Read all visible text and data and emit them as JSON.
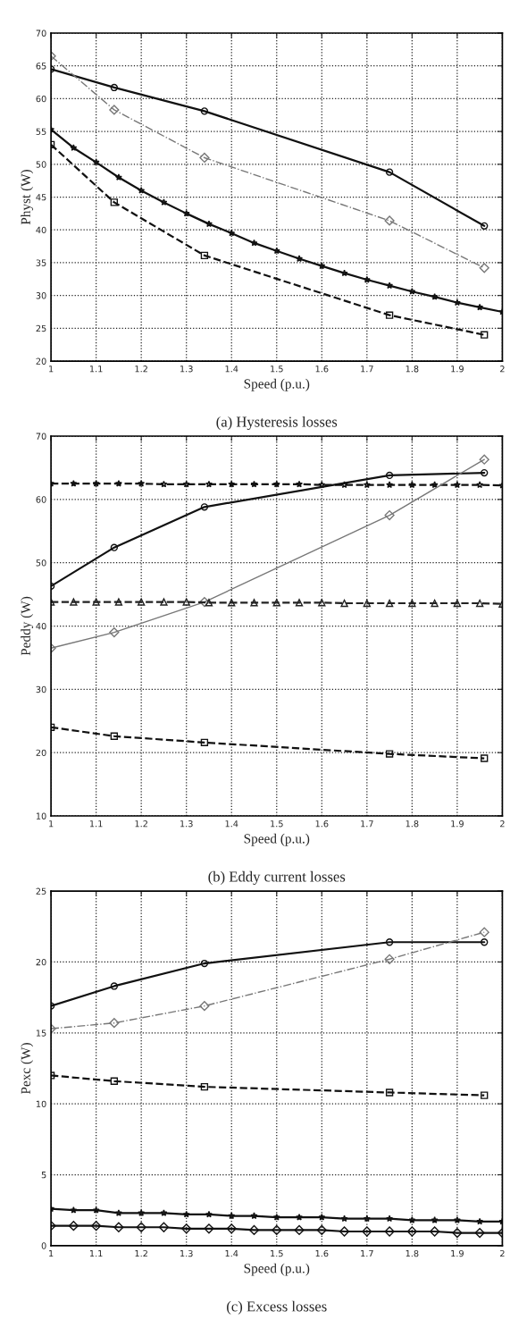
{
  "chart_data": [
    {
      "type": "line",
      "title": "(a) Hysteresis losses",
      "xlabel": "Speed (p.u.)",
      "ylabel": "Physt (W)",
      "xlim": [
        1,
        2
      ],
      "ylim": [
        20,
        70
      ],
      "xticks": [
        1,
        1.1,
        1.2,
        1.3,
        1.4,
        1.5,
        1.6,
        1.7,
        1.8,
        1.9,
        2
      ],
      "yticks": [
        20,
        25,
        30,
        35,
        40,
        45,
        50,
        55,
        60,
        65,
        70
      ],
      "grid": true,
      "legend": false,
      "x": [
        1,
        1.14,
        1.34,
        1.75,
        1.96
      ],
      "series": [
        {
          "color": "#111111",
          "marker": "circle",
          "line_style": "solid",
          "values": [
            64.5,
            61.7,
            58.1,
            48.8,
            40.6
          ]
        },
        {
          "color": "#777777",
          "marker": "diamond",
          "line_style": "dashdot",
          "values": [
            66.5,
            58.3,
            51.0,
            41.4,
            34.2
          ]
        },
        {
          "color": "#111111",
          "marker": "star",
          "line_style": "solid",
          "x": [
            1,
            1.05,
            1.1,
            1.15,
            1.2,
            1.25,
            1.3,
            1.35,
            1.4,
            1.45,
            1.5,
            1.55,
            1.6,
            1.65,
            1.7,
            1.75,
            1.8,
            1.85,
            1.9,
            1.95,
            2
          ],
          "values": [
            55.3,
            52.5,
            50.3,
            48.0,
            46.0,
            44.2,
            42.5,
            40.9,
            39.5,
            38.0,
            36.8,
            35.6,
            34.5,
            33.4,
            32.4,
            31.5,
            30.6,
            29.8,
            28.9,
            28.2,
            27.5
          ]
        },
        {
          "color": "#111111",
          "marker": "square",
          "line_style": "dashed",
          "values": [
            53.0,
            44.2,
            36.1,
            27.0,
            24.0
          ]
        }
      ]
    },
    {
      "type": "line",
      "title": "(b) Eddy current losses",
      "xlabel": "Speed (p.u.)",
      "ylabel": "Peddy (W)",
      "xlim": [
        1,
        2
      ],
      "ylim": [
        10,
        70
      ],
      "xticks": [
        1,
        1.1,
        1.2,
        1.3,
        1.4,
        1.5,
        1.6,
        1.7,
        1.8,
        1.9,
        2
      ],
      "yticks": [
        10,
        20,
        30,
        40,
        50,
        60,
        70
      ],
      "grid": true,
      "legend": false,
      "x": [
        1,
        1.14,
        1.34,
        1.75,
        1.96
      ],
      "series": [
        {
          "color": "#111111",
          "marker": "star",
          "line_style": "dashed",
          "x": [
            1,
            1.05,
            1.1,
            1.15,
            1.2,
            1.25,
            1.3,
            1.35,
            1.4,
            1.45,
            1.5,
            1.55,
            1.6,
            1.65,
            1.7,
            1.75,
            1.8,
            1.85,
            1.9,
            1.95,
            2
          ],
          "values": [
            62.5,
            62.5,
            62.5,
            62.5,
            62.5,
            62.4,
            62.4,
            62.4,
            62.4,
            62.4,
            62.4,
            62.4,
            62.3,
            62.3,
            62.3,
            62.3,
            62.3,
            62.3,
            62.3,
            62.3,
            62.2
          ]
        },
        {
          "color": "#111111",
          "marker": "circle",
          "line_style": "solid",
          "values": [
            46.3,
            52.4,
            58.8,
            63.8,
            64.2
          ]
        },
        {
          "color": "#777777",
          "marker": "diamond",
          "line_style": "solid",
          "values": [
            36.5,
            39.0,
            43.8,
            57.5,
            66.3
          ]
        },
        {
          "color": "#222222",
          "marker": "triangle",
          "line_style": "dashed",
          "x": [
            1,
            1.05,
            1.1,
            1.15,
            1.2,
            1.25,
            1.3,
            1.35,
            1.4,
            1.45,
            1.5,
            1.55,
            1.6,
            1.65,
            1.7,
            1.75,
            1.8,
            1.85,
            1.9,
            1.95,
            2
          ],
          "values": [
            43.8,
            43.8,
            43.8,
            43.8,
            43.8,
            43.8,
            43.8,
            43.7,
            43.7,
            43.7,
            43.7,
            43.7,
            43.7,
            43.6,
            43.6,
            43.6,
            43.6,
            43.6,
            43.6,
            43.6,
            43.5
          ]
        },
        {
          "color": "#111111",
          "marker": "square",
          "line_style": "dashed",
          "values": [
            24.0,
            22.6,
            21.6,
            19.8,
            19.1
          ]
        }
      ]
    },
    {
      "type": "line",
      "title": "(c) Excess losses",
      "xlabel": "Speed (p.u.)",
      "ylabel": "Pexc (W)",
      "xlim": [
        1,
        2
      ],
      "ylim": [
        0,
        25
      ],
      "xticks": [
        1,
        1.1,
        1.2,
        1.3,
        1.4,
        1.5,
        1.6,
        1.7,
        1.8,
        1.9,
        2
      ],
      "yticks": [
        0,
        5,
        10,
        15,
        20,
        25
      ],
      "grid": true,
      "legend": false,
      "x": [
        1,
        1.14,
        1.34,
        1.75,
        1.96
      ],
      "series": [
        {
          "color": "#111111",
          "marker": "circle",
          "line_style": "solid",
          "values": [
            16.9,
            18.3,
            19.9,
            21.4,
            21.4
          ]
        },
        {
          "color": "#777777",
          "marker": "diamond",
          "line_style": "dashdot",
          "values": [
            15.3,
            15.7,
            16.9,
            20.2,
            22.1
          ]
        },
        {
          "color": "#111111",
          "marker": "square",
          "line_style": "dashed",
          "values": [
            12.0,
            11.6,
            11.2,
            10.8,
            10.6
          ]
        },
        {
          "color": "#111111",
          "marker": "star",
          "line_style": "solid",
          "x": [
            1,
            1.05,
            1.1,
            1.15,
            1.2,
            1.25,
            1.3,
            1.35,
            1.4,
            1.45,
            1.5,
            1.55,
            1.6,
            1.65,
            1.7,
            1.75,
            1.8,
            1.85,
            1.9,
            1.95,
            2
          ],
          "values": [
            2.6,
            2.5,
            2.5,
            2.3,
            2.3,
            2.3,
            2.2,
            2.2,
            2.1,
            2.1,
            2.0,
            2.0,
            2.0,
            1.9,
            1.9,
            1.9,
            1.8,
            1.8,
            1.8,
            1.7,
            1.7
          ]
        },
        {
          "color": "#111111",
          "marker": "diamond",
          "line_style": "solid",
          "x": [
            1,
            1.05,
            1.1,
            1.15,
            1.2,
            1.25,
            1.3,
            1.35,
            1.4,
            1.45,
            1.5,
            1.55,
            1.6,
            1.65,
            1.7,
            1.75,
            1.8,
            1.85,
            1.9,
            1.95,
            2
          ],
          "values": [
            1.4,
            1.4,
            1.4,
            1.3,
            1.3,
            1.3,
            1.2,
            1.2,
            1.2,
            1.1,
            1.1,
            1.1,
            1.1,
            1.0,
            1.0,
            1.0,
            1.0,
            1.0,
            0.9,
            0.9,
            0.9
          ]
        }
      ]
    }
  ]
}
